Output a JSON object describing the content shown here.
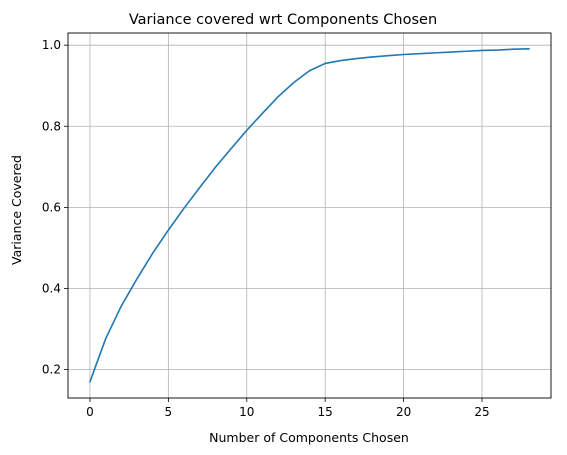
{
  "chart_data": {
    "type": "line",
    "title": "Variance covered wrt Components Chosen",
    "xlabel": "Number of Components Chosen",
    "ylabel": "Variance Covered",
    "xlim": [
      -1.4,
      29.4
    ],
    "ylim": [
      0.13,
      1.03
    ],
    "xticks": [
      0,
      5,
      10,
      15,
      20,
      25
    ],
    "xtick_labels": [
      "0",
      "5",
      "10",
      "15",
      "20",
      "25"
    ],
    "yticks": [
      0.2,
      0.4,
      0.6,
      0.8,
      1.0
    ],
    "ytick_labels": [
      "0.2",
      "0.4",
      "0.6",
      "0.8",
      "1.0"
    ],
    "grid": true,
    "line_color": "#1f77b4",
    "grid_color": "#b0b0b0",
    "series": [
      {
        "x": [
          0,
          1,
          2,
          3,
          4,
          5,
          6,
          7,
          8,
          9,
          10,
          11,
          12,
          13,
          14,
          15,
          16,
          17,
          18,
          19,
          20,
          21,
          22,
          23,
          24,
          25,
          26,
          27,
          28
        ],
        "values": [
          0.17,
          0.276,
          0.357,
          0.424,
          0.487,
          0.544,
          0.598,
          0.649,
          0.699,
          0.745,
          0.79,
          0.832,
          0.873,
          0.908,
          0.937,
          0.955,
          0.962,
          0.967,
          0.971,
          0.974,
          0.977,
          0.979,
          0.981,
          0.983,
          0.985,
          0.987,
          0.988,
          0.99,
          0.991
        ]
      }
    ]
  }
}
